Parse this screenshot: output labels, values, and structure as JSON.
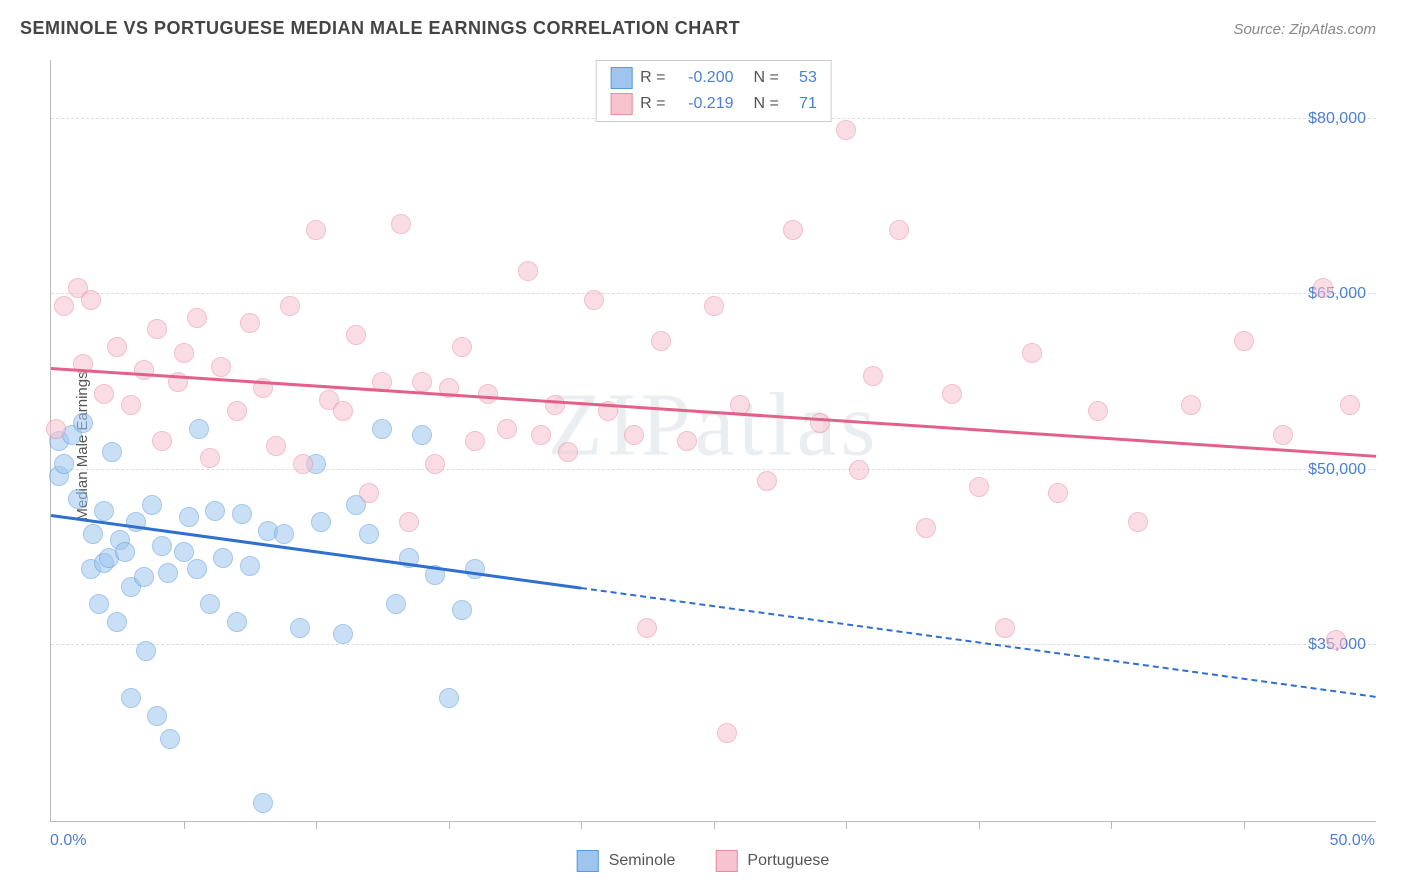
{
  "title": "SEMINOLE VS PORTUGUESE MEDIAN MALE EARNINGS CORRELATION CHART",
  "source": "Source: ZipAtlas.com",
  "watermark": "ZIPatlas",
  "chart": {
    "type": "scatter",
    "ylabel": "Median Male Earnings",
    "xlim": [
      0,
      50
    ],
    "ylim": [
      20000,
      85000
    ],
    "x_ticks_minor": [
      5,
      10,
      15,
      20,
      25,
      30,
      35,
      40,
      45
    ],
    "x_tick_labels": [
      {
        "x": 0,
        "label": "0.0%"
      },
      {
        "x": 50,
        "label": "50.0%"
      }
    ],
    "y_gridlines": [
      35000,
      50000,
      65000,
      80000
    ],
    "y_tick_labels": [
      {
        "y": 35000,
        "label": "$35,000"
      },
      {
        "y": 50000,
        "label": "$50,000"
      },
      {
        "y": 65000,
        "label": "$65,000"
      },
      {
        "y": 80000,
        "label": "$80,000"
      }
    ],
    "background_color": "#ffffff",
    "grid_color": "#dddddd",
    "axis_color": "#bbbbbb",
    "tick_label_color": "#4a7fd6",
    "dot_radius": 10,
    "dot_opacity": 0.55,
    "series": [
      {
        "name": "Seminole",
        "fill": "#9ec5f0",
        "stroke": "#5b9bdc",
        "line_color": "#2f6fd0",
        "trend": {
          "x0": 0,
          "y0": 46000,
          "x1": 50,
          "y1": 30500,
          "solid_until_x": 20
        },
        "stats": {
          "R": "-0.200",
          "N": "53"
        },
        "points": [
          [
            0.3,
            49500
          ],
          [
            0.3,
            52500
          ],
          [
            0.5,
            50500
          ],
          [
            0.8,
            53000
          ],
          [
            1.0,
            47500
          ],
          [
            1.2,
            54000
          ],
          [
            1.5,
            41500
          ],
          [
            1.6,
            44500
          ],
          [
            1.8,
            38500
          ],
          [
            2.0,
            42000
          ],
          [
            2.0,
            46500
          ],
          [
            2.2,
            42500
          ],
          [
            2.3,
            51500
          ],
          [
            2.5,
            37000
          ],
          [
            2.6,
            44000
          ],
          [
            2.8,
            43000
          ],
          [
            3.0,
            40000
          ],
          [
            3.0,
            30500
          ],
          [
            3.2,
            45500
          ],
          [
            3.5,
            40800
          ],
          [
            3.6,
            34500
          ],
          [
            3.8,
            47000
          ],
          [
            4.0,
            29000
          ],
          [
            4.2,
            43500
          ],
          [
            4.4,
            41200
          ],
          [
            4.5,
            27000
          ],
          [
            5.0,
            43000
          ],
          [
            5.2,
            46000
          ],
          [
            5.5,
            41500
          ],
          [
            5.6,
            53500
          ],
          [
            6.0,
            38500
          ],
          [
            6.2,
            46500
          ],
          [
            6.5,
            42500
          ],
          [
            7.0,
            37000
          ],
          [
            7.2,
            46200
          ],
          [
            7.5,
            41800
          ],
          [
            8.0,
            21500
          ],
          [
            8.2,
            44800
          ],
          [
            8.8,
            44500
          ],
          [
            9.4,
            36500
          ],
          [
            10.0,
            50500
          ],
          [
            10.2,
            45500
          ],
          [
            11.0,
            36000
          ],
          [
            11.5,
            47000
          ],
          [
            12.0,
            44500
          ],
          [
            12.5,
            53500
          ],
          [
            13.0,
            38500
          ],
          [
            13.5,
            42500
          ],
          [
            14.0,
            53000
          ],
          [
            14.5,
            41000
          ],
          [
            15.0,
            30500
          ],
          [
            15.5,
            38000
          ],
          [
            16.0,
            41500
          ]
        ]
      },
      {
        "name": "Portuguese",
        "fill": "#f6c3cf",
        "stroke": "#e98ba4",
        "line_color": "#e26089",
        "trend": {
          "x0": 0,
          "y0": 58500,
          "x1": 50,
          "y1": 51000,
          "solid_until_x": 50
        },
        "stats": {
          "R": "-0.219",
          "N": "71"
        },
        "points": [
          [
            0.2,
            53500
          ],
          [
            0.5,
            64000
          ],
          [
            1.0,
            65500
          ],
          [
            1.2,
            59000
          ],
          [
            1.5,
            64500
          ],
          [
            2.0,
            56500
          ],
          [
            2.5,
            60500
          ],
          [
            3.0,
            55500
          ],
          [
            3.5,
            58500
          ],
          [
            4.0,
            62000
          ],
          [
            4.2,
            52500
          ],
          [
            4.8,
            57500
          ],
          [
            5.0,
            60000
          ],
          [
            5.5,
            63000
          ],
          [
            6.0,
            51000
          ],
          [
            6.4,
            58800
          ],
          [
            7.0,
            55000
          ],
          [
            7.5,
            62500
          ],
          [
            8.0,
            57000
          ],
          [
            8.5,
            52000
          ],
          [
            9.0,
            64000
          ],
          [
            9.5,
            50500
          ],
          [
            10.0,
            70500
          ],
          [
            10.5,
            56000
          ],
          [
            11.0,
            55000
          ],
          [
            11.5,
            61500
          ],
          [
            12.0,
            48000
          ],
          [
            12.5,
            57500
          ],
          [
            13.2,
            71000
          ],
          [
            13.5,
            45500
          ],
          [
            14.0,
            57500
          ],
          [
            14.5,
            50500
          ],
          [
            15.0,
            57000
          ],
          [
            15.5,
            60500
          ],
          [
            16.0,
            52500
          ],
          [
            16.5,
            56500
          ],
          [
            17.2,
            53500
          ],
          [
            18.0,
            67000
          ],
          [
            18.5,
            53000
          ],
          [
            19.0,
            55500
          ],
          [
            19.5,
            51500
          ],
          [
            20.5,
            64500
          ],
          [
            21.0,
            55000
          ],
          [
            22.0,
            53000
          ],
          [
            22.5,
            36500
          ],
          [
            23.0,
            61000
          ],
          [
            24.0,
            52500
          ],
          [
            25.0,
            64000
          ],
          [
            25.5,
            27500
          ],
          [
            26.0,
            55500
          ],
          [
            27.0,
            49000
          ],
          [
            28.0,
            70500
          ],
          [
            29.0,
            54000
          ],
          [
            30.0,
            79000
          ],
          [
            30.5,
            50000
          ],
          [
            31.0,
            58000
          ],
          [
            32.0,
            70500
          ],
          [
            33.0,
            45000
          ],
          [
            34.0,
            56500
          ],
          [
            35.0,
            48500
          ],
          [
            36.0,
            36500
          ],
          [
            37.0,
            60000
          ],
          [
            38.0,
            48000
          ],
          [
            39.5,
            55000
          ],
          [
            41.0,
            45500
          ],
          [
            43.0,
            55500
          ],
          [
            45.0,
            61000
          ],
          [
            46.5,
            53000
          ],
          [
            48.0,
            65500
          ],
          [
            48.5,
            35500
          ],
          [
            49.0,
            55500
          ]
        ]
      }
    ],
    "legend": [
      "Seminole",
      "Portuguese"
    ]
  }
}
